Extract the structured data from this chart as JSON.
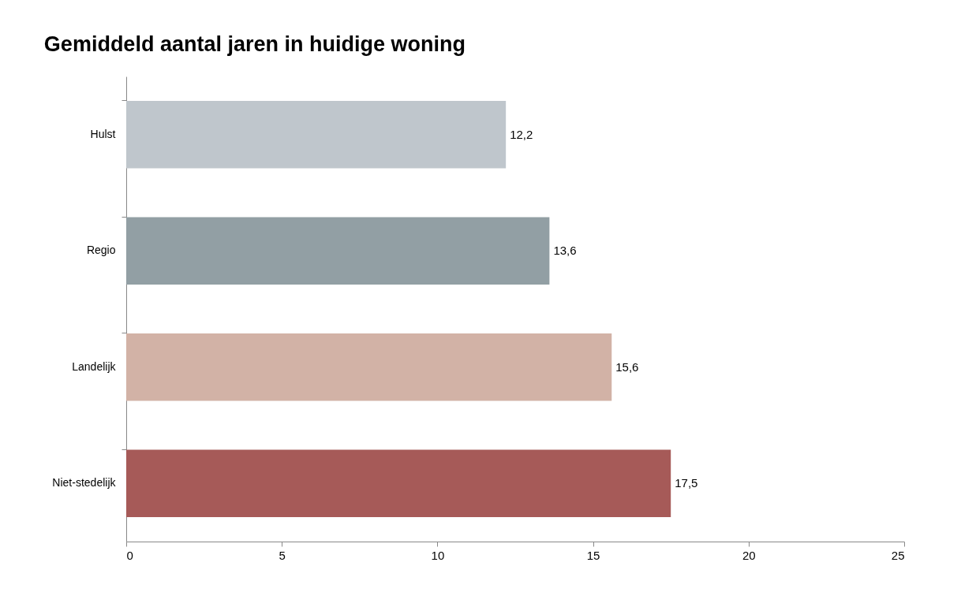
{
  "chart_data": {
    "type": "bar",
    "orientation": "horizontal",
    "title": "Gemiddeld aantal jaren in huidige woning",
    "categories": [
      "Hulst",
      "Regio",
      "Landelijk",
      "Niet-stedelijk"
    ],
    "values": [
      12.2,
      13.6,
      15.6,
      17.5
    ],
    "colors": [
      "#bfc6cc",
      "#929fa4",
      "#d2b2a6",
      "#a65a58"
    ],
    "value_labels": [
      "12,2",
      "13,6",
      "15,6",
      "17,5"
    ],
    "xlim": [
      0,
      25
    ],
    "xticks": [
      0,
      5,
      10,
      15,
      20,
      25
    ],
    "grid": false,
    "legend": false
  }
}
